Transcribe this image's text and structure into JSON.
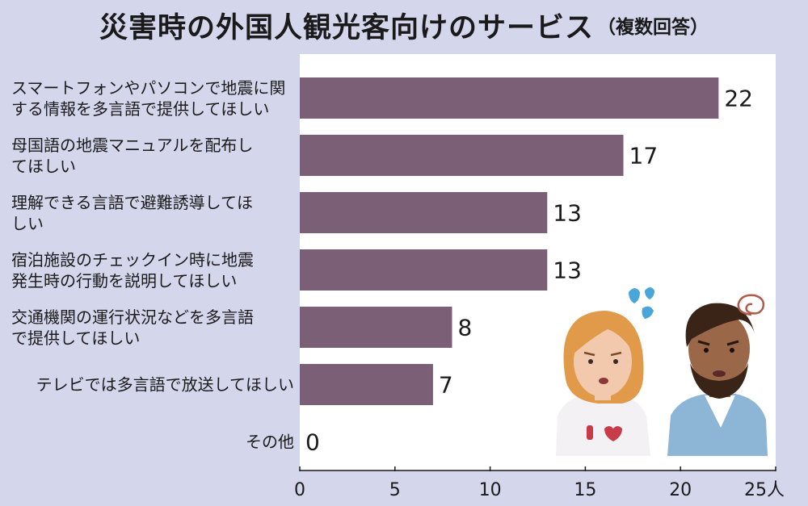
{
  "header": {
    "title": "災害時の外国人観光客向けのサービス",
    "subtitle": "（複数回答）"
  },
  "chart_data": {
    "type": "bar",
    "orientation": "horizontal",
    "title": "災害時の外国人観光客向けのサービス",
    "subtitle": "（複数回答）",
    "categories": [
      [
        "スマートフォンやパソコンで地震に関",
        "する情報を多言語で提供してほしい"
      ],
      [
        "母国語の地震マニュアルを配布し",
        "てほしい"
      ],
      [
        "理解できる言語で避難誘導してほ",
        "しい"
      ],
      [
        "宿泊施設のチェックイン時に地震",
        "発生時の行動を説明してほしい"
      ],
      [
        "交通機関の運行状況などを多言語",
        "で提供してほしい"
      ],
      [
        "テレビでは多言語で放送してほしい"
      ],
      [
        "その他"
      ]
    ],
    "values": [
      22,
      17,
      13,
      13,
      8,
      7,
      0
    ],
    "value_labels": [
      "22",
      "17",
      "13",
      "13",
      "8",
      "7",
      "0"
    ],
    "xlim": [
      0,
      25
    ],
    "xticks": [
      "0",
      "5",
      "10",
      "15",
      "20",
      "25人"
    ],
    "bar_color": "#7a5f77",
    "grid": false
  },
  "colors": {
    "background": "#d4d6ec",
    "plot_background": "#ffffff",
    "bar": "#7a5f77"
  },
  "illustration": {
    "icons": [
      "worried-woman-icon",
      "worried-man-icon",
      "sweat-drops-icon",
      "dizzy-swirl-icon"
    ]
  }
}
